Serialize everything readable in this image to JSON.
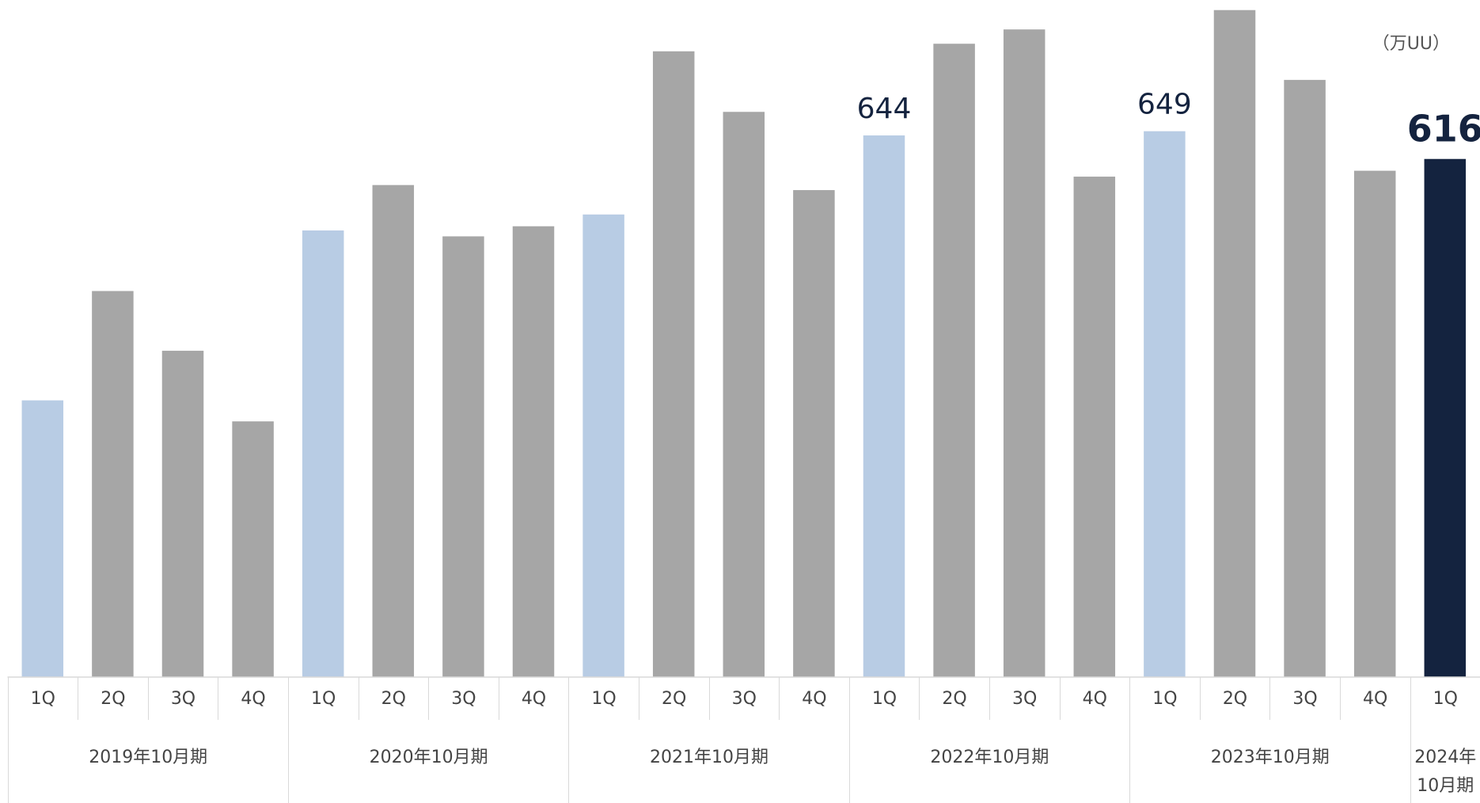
{
  "chart_data": {
    "type": "bar",
    "unit": "（万UU）",
    "ylim": [
      0,
      805
    ],
    "highlight_color": "#14233f",
    "groups": [
      {
        "name": "2019年10月期",
        "categories": [
          "1Q",
          "2Q",
          "3Q",
          "4Q"
        ],
        "values": [
          329,
          459,
          388,
          304
        ],
        "colors": [
          "#b8cce4",
          "#a6a6a6",
          "#a6a6a6",
          "#a6a6a6"
        ]
      },
      {
        "name": "2020年10月期",
        "categories": [
          "1Q",
          "2Q",
          "3Q",
          "4Q"
        ],
        "values": [
          531,
          585,
          524,
          536
        ],
        "colors": [
          "#b8cce4",
          "#a6a6a6",
          "#a6a6a6",
          "#a6a6a6"
        ]
      },
      {
        "name": "2021年10月期",
        "categories": [
          "1Q",
          "2Q",
          "3Q",
          "4Q"
        ],
        "values": [
          550,
          744,
          672,
          579
        ],
        "colors": [
          "#b8cce4",
          "#a6a6a6",
          "#a6a6a6",
          "#a6a6a6"
        ]
      },
      {
        "name": "2022年10月期",
        "categories": [
          "1Q",
          "2Q",
          "3Q",
          "4Q"
        ],
        "values": [
          644,
          753,
          770,
          595
        ],
        "colors": [
          "#b8cce4",
          "#a6a6a6",
          "#a6a6a6",
          "#a6a6a6"
        ],
        "labeled": [
          0
        ]
      },
      {
        "name": "2023年10月期",
        "categories": [
          "1Q",
          "2Q",
          "3Q",
          "4Q"
        ],
        "values": [
          649,
          793,
          710,
          602
        ],
        "colors": [
          "#b8cce4",
          "#a6a6a6",
          "#a6a6a6",
          "#a6a6a6"
        ],
        "labeled": [
          0
        ]
      },
      {
        "name": "2024年10月期",
        "categories": [
          "1Q"
        ],
        "values": [
          616
        ],
        "colors": [
          "#14233f"
        ],
        "labeled": [
          0
        ]
      }
    ]
  }
}
